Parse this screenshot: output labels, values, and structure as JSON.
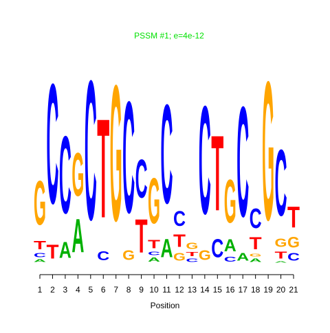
{
  "chart_data": {
    "type": "logo",
    "title": "PSSM #1; e=4e-12",
    "x_label": "Position",
    "ylim": [
      0,
      2
    ],
    "colors": {
      "A": "#00b000",
      "C": "#0000ff",
      "G": "#ffa500",
      "T": "#ff0000"
    },
    "categories": [
      "1",
      "2",
      "3",
      "4",
      "5",
      "6",
      "7",
      "8",
      "9",
      "10",
      "11",
      "12",
      "13",
      "14",
      "15",
      "16",
      "17",
      "18",
      "19",
      "20",
      "21"
    ],
    "positions": [
      {
        "letters": [
          {
            "base": "A",
            "height": 0.04
          },
          {
            "base": "C",
            "height": 0.06
          },
          {
            "base": "T",
            "height": 0.12
          },
          {
            "base": "G",
            "height": 0.63
          }
        ]
      },
      {
        "letters": [
          {
            "base": "T",
            "height": 0.2
          },
          {
            "base": "C",
            "height": 1.72
          }
        ]
      },
      {
        "letters": [
          {
            "base": "A",
            "height": 0.23
          },
          {
            "base": "C",
            "height": 1.11
          }
        ]
      },
      {
        "letters": [
          {
            "base": "A",
            "height": 0.48
          },
          {
            "base": "G",
            "height": 0.62
          }
        ]
      },
      {
        "letters": [
          {
            "base": "C",
            "height": 2.0
          }
        ]
      },
      {
        "letters": [
          {
            "base": "C",
            "height": 0.13
          },
          {
            "base": "T",
            "height": 1.42
          }
        ]
      },
      {
        "letters": [
          {
            "base": "G",
            "height": 1.95
          }
        ]
      },
      {
        "letters": [
          {
            "base": "G",
            "height": 0.14
          },
          {
            "base": "C",
            "height": 1.6
          }
        ]
      },
      {
        "letters": [
          {
            "base": "T",
            "height": 0.48
          },
          {
            "base": "C",
            "height": 0.55
          }
        ]
      },
      {
        "letters": [
          {
            "base": "A",
            "height": 0.06
          },
          {
            "base": "C",
            "height": 0.05
          },
          {
            "base": "T",
            "height": 0.12
          },
          {
            "base": "G",
            "height": 0.65
          }
        ]
      },
      {
        "letters": [
          {
            "base": "A",
            "height": 0.26
          },
          {
            "base": "C",
            "height": 1.42
          }
        ]
      },
      {
        "letters": [
          {
            "base": "G",
            "height": 0.11
          },
          {
            "base": "T",
            "height": 0.18
          },
          {
            "base": "C",
            "height": 0.22
          }
        ]
      },
      {
        "letters": [
          {
            "base": "C",
            "height": 0.05
          },
          {
            "base": "T",
            "height": 0.06
          },
          {
            "base": "G",
            "height": 0.09
          }
        ]
      },
      {
        "letters": [
          {
            "base": "G",
            "height": 0.14
          },
          {
            "base": "C",
            "height": 1.55
          }
        ]
      },
      {
        "letters": [
          {
            "base": "C",
            "height": 0.26
          },
          {
            "base": "T",
            "height": 1.08
          }
        ]
      },
      {
        "letters": [
          {
            "base": "C",
            "height": 0.07
          },
          {
            "base": "A",
            "height": 0.17
          },
          {
            "base": "G",
            "height": 0.62
          }
        ]
      },
      {
        "letters": [
          {
            "base": "A",
            "height": 0.11
          },
          {
            "base": "C",
            "height": 1.58
          }
        ]
      },
      {
        "letters": [
          {
            "base": "A",
            "height": 0.05
          },
          {
            "base": "G",
            "height": 0.04
          },
          {
            "base": "T",
            "height": 0.17
          },
          {
            "base": "C",
            "height": 0.28
          }
        ]
      },
      {
        "letters": [
          {
            "base": "G",
            "height": 1.99
          }
        ]
      },
      {
        "letters": [
          {
            "base": "A",
            "height": 0.02
          },
          {
            "base": "T",
            "height": 0.1
          },
          {
            "base": "G",
            "height": 0.12
          },
          {
            "base": "C",
            "height": 0.95
          }
        ]
      },
      {
        "letters": [
          {
            "base": "C",
            "height": 0.11
          },
          {
            "base": "G",
            "height": 0.15
          },
          {
            "base": "T",
            "height": 0.3
          }
        ]
      }
    ]
  }
}
